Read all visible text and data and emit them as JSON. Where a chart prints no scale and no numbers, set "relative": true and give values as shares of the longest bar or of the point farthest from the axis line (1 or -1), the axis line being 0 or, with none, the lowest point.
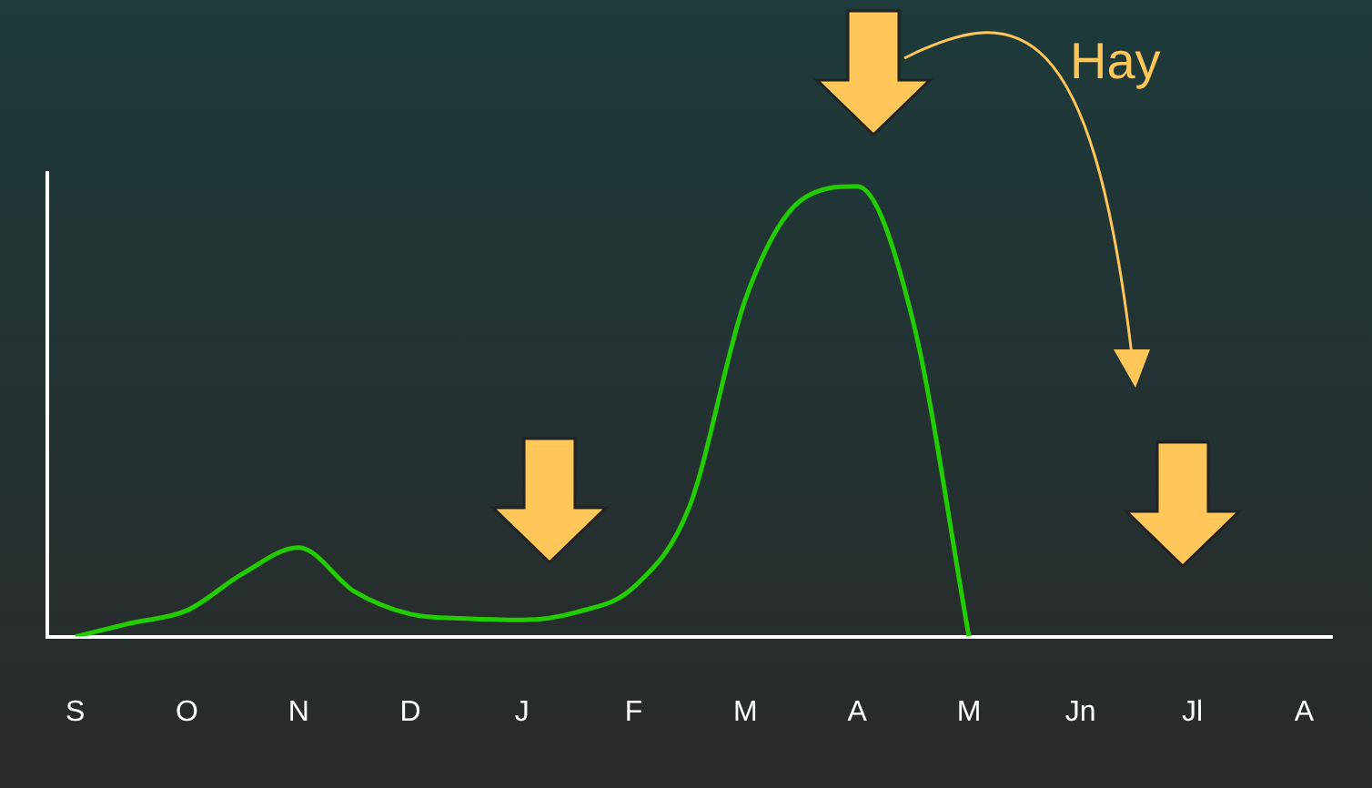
{
  "chart_data": {
    "type": "line",
    "relative": true,
    "categories": [
      "S",
      null,
      "O",
      null,
      "N",
      null,
      "D",
      null,
      "J",
      null,
      "F",
      null,
      "M",
      null,
      "A",
      null,
      "M",
      null,
      "Jn",
      null,
      "Jl",
      null,
      "A"
    ],
    "series": [
      {
        "color": "#22cc00",
        "values": [
          0,
          0.03,
          0.058,
          0.14,
          0.198,
          0.1,
          0.05,
          0.04,
          0.037,
          0.055,
          0.11,
          0.29,
          0.75,
          0.97,
          1,
          0.7,
          0,
          null,
          null,
          null,
          null,
          null,
          null
        ]
      }
    ],
    "annotations": [
      "Hay"
    ],
    "grid": false,
    "legend": false,
    "marker": "none",
    "line_style": "solid"
  }
}
